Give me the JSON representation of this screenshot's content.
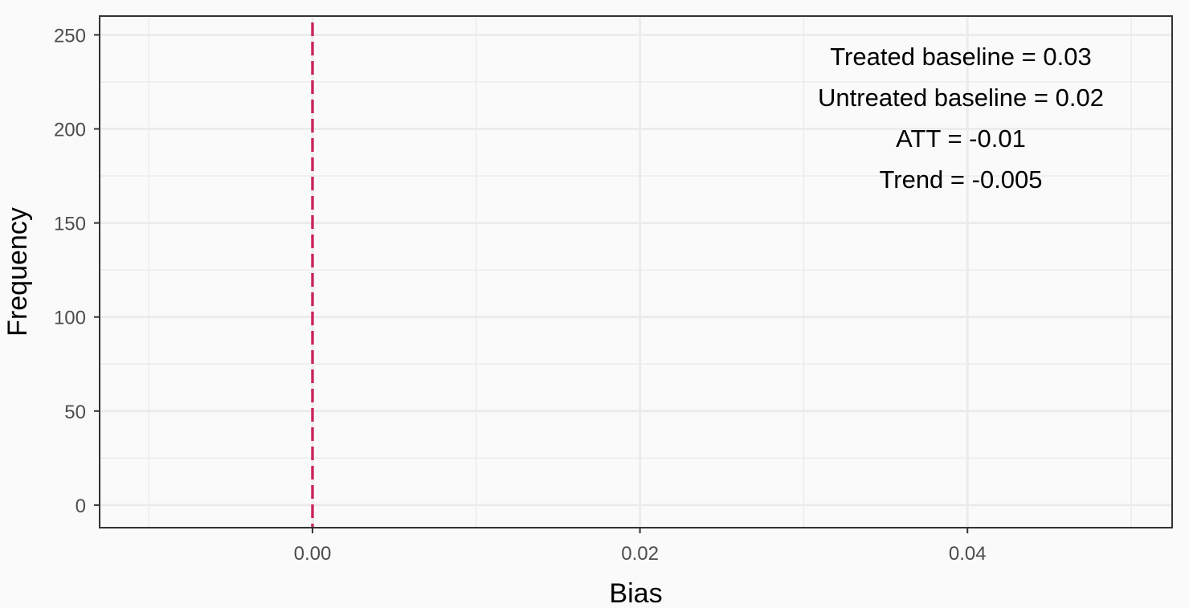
{
  "chart_data": {
    "type": "bar",
    "title": "",
    "xlabel": "Bias",
    "ylabel": "Frequency",
    "xlim": [
      -0.013,
      0.0525
    ],
    "ylim": [
      -12,
      260
    ],
    "x_ticks": [
      0.0,
      0.02,
      0.04
    ],
    "x_tick_labels": [
      "0.00",
      "0.02",
      "0.04"
    ],
    "x_minor_ticks": [
      -0.01,
      0.01,
      0.03,
      0.05
    ],
    "y_ticks": [
      0,
      50,
      100,
      150,
      200,
      250
    ],
    "y_tick_labels": [
      "0",
      "50",
      "100",
      "150",
      "200",
      "250"
    ],
    "y_minor_ticks": [
      25,
      75,
      125,
      175,
      225
    ],
    "series": [],
    "reference_line": {
      "x": 0.0,
      "style": "dashed",
      "color": "#c9245e"
    },
    "annotations": [
      "Treated baseline = 0.03",
      "Untreated baseline = 0.02",
      "ATT = -0.01",
      "Trend = -0.005"
    ],
    "annotation_position": "top-right",
    "grid": true,
    "legend": "none",
    "colors": {
      "background": "#fafafa",
      "grid": "#ebebeb",
      "border": "#333333",
      "tick_text": "#4d4d4d",
      "title_text": "#000000"
    }
  }
}
